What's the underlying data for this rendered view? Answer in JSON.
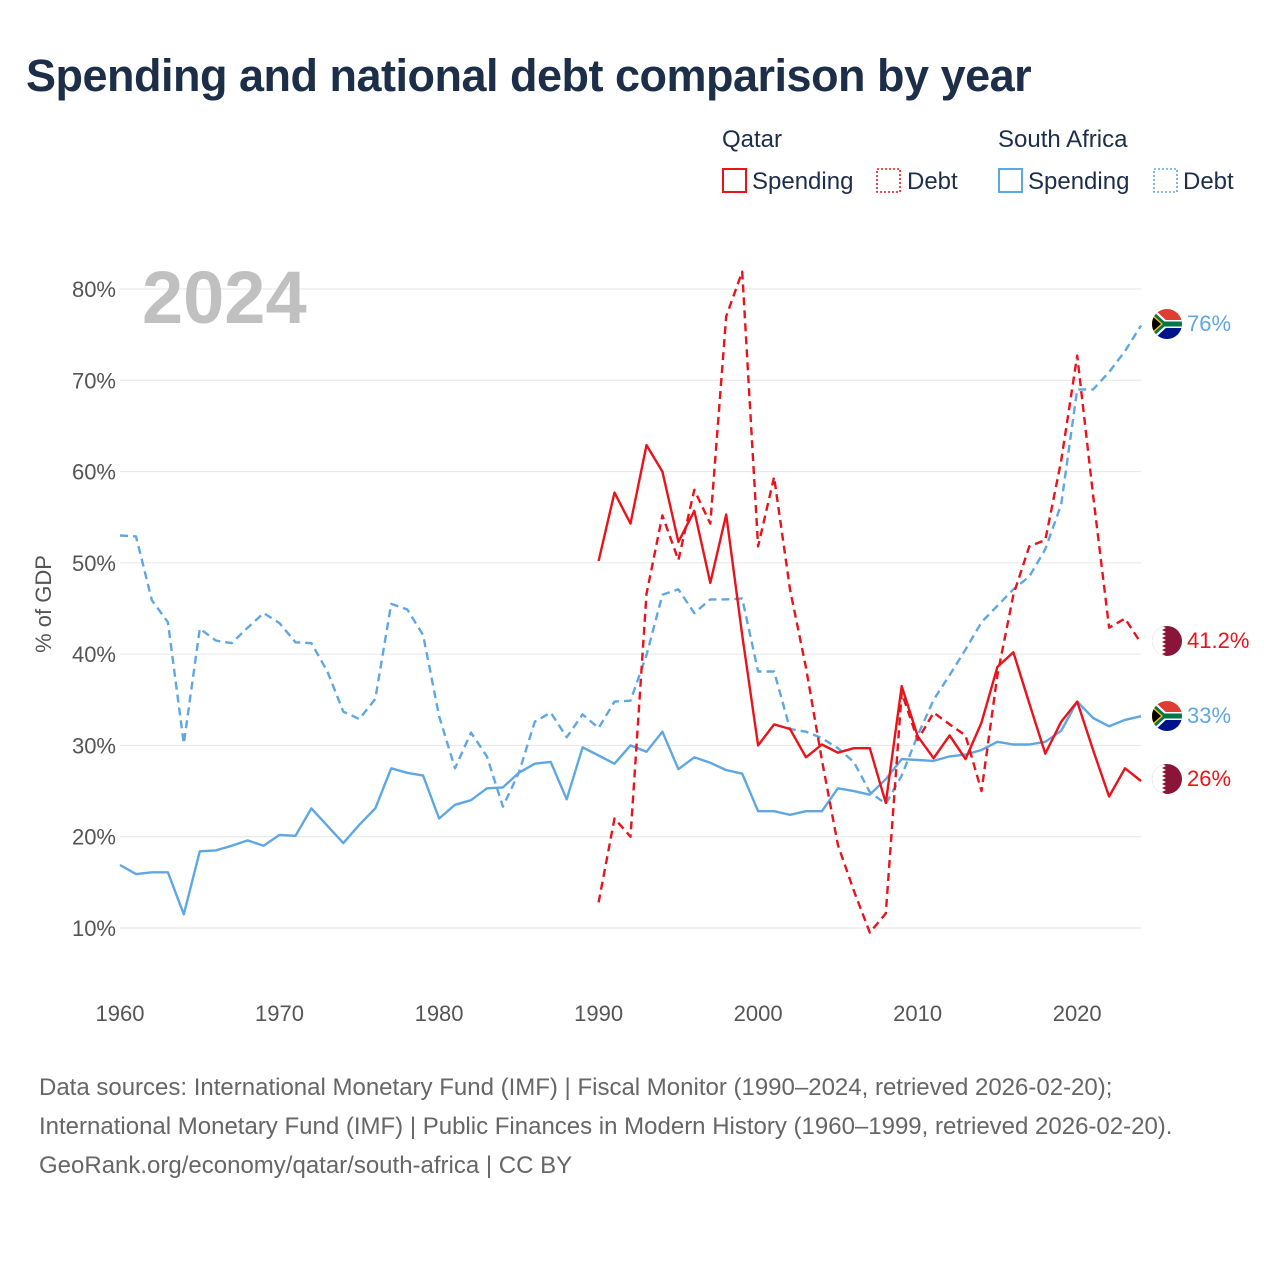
{
  "title": "Spending and national debt comparison by year",
  "year_label": "2024",
  "colors": {
    "qatar": "#e8131b",
    "south_africa": "#5fa7e3",
    "title": "#1c2e48"
  },
  "legend": {
    "groups": [
      {
        "name": "Qatar",
        "items": [
          {
            "label": "Spending",
            "style": "solid"
          },
          {
            "label": "Debt",
            "style": "dotted"
          }
        ]
      },
      {
        "name": "South Africa",
        "items": [
          {
            "label": "Spending",
            "style": "solid"
          },
          {
            "label": "Debt",
            "style": "dotted"
          }
        ]
      }
    ]
  },
  "chart_data": {
    "type": "line",
    "title": "Spending and national debt comparison by year",
    "xlabel": "",
    "ylabel": "% of GDP",
    "xlim": [
      1960,
      2024
    ],
    "ylim": [
      5,
      85
    ],
    "x_ticks": [
      1960,
      1970,
      1980,
      1990,
      2000,
      2010,
      2020
    ],
    "y_ticks": [
      10,
      20,
      30,
      40,
      50,
      60,
      70,
      80
    ],
    "y_tick_labels": [
      "10%",
      "20%",
      "30%",
      "40%",
      "50%",
      "60%",
      "70%",
      "80%"
    ],
    "grid": true,
    "series": [
      {
        "name": "South Africa Debt",
        "country": "South Africa",
        "measure": "Debt",
        "style": "dashed",
        "end_label": "76%",
        "flag": "south-africa-flag",
        "x": [
          1960,
          1961,
          1962,
          1963,
          1964,
          1965,
          1966,
          1967,
          1968,
          1969,
          1970,
          1971,
          1972,
          1973,
          1974,
          1975,
          1976,
          1977,
          1978,
          1979,
          1980,
          1981,
          1982,
          1983,
          1984,
          1985,
          1986,
          1987,
          1988,
          1989,
          1990,
          1991,
          1992,
          1993,
          1994,
          1995,
          1996,
          1997,
          1998,
          1999,
          2000,
          2001,
          2002,
          2003,
          2004,
          2005,
          2006,
          2007,
          2008,
          2009,
          2010,
          2011,
          2012,
          2013,
          2014,
          2015,
          2016,
          2017,
          2018,
          2019,
          2020,
          2021,
          2022,
          2023,
          2024
        ],
        "values": [
          53,
          52.9,
          45.9,
          43.5,
          30.2,
          42.8,
          41.5,
          41.2,
          42.9,
          44.5,
          43.4,
          41.3,
          41.2,
          38.1,
          33.7,
          32.9,
          35.1,
          45.5,
          44.9,
          42.1,
          33.2,
          27.5,
          31.4,
          28.8,
          23.3,
          27,
          32.6,
          33.6,
          30.9,
          33.4,
          31.9,
          34.8,
          34.9,
          39.9,
          46.5,
          47.1,
          44.5,
          46,
          46,
          46.1,
          38.1,
          38.1,
          31.8,
          31.5,
          30.8,
          29.7,
          28.2,
          24.9,
          23.6,
          26.7,
          31.1,
          35,
          37.7,
          40.5,
          43.5,
          45.3,
          47.1,
          48.5,
          51.5,
          56.4,
          69,
          69,
          70.9,
          73.2,
          76
        ]
      },
      {
        "name": "South Africa Spending",
        "country": "South Africa",
        "measure": "Spending",
        "style": "solid",
        "end_label": "33%",
        "flag": "south-africa-flag",
        "x": [
          1960,
          1961,
          1962,
          1963,
          1964,
          1965,
          1966,
          1967,
          1968,
          1969,
          1970,
          1971,
          1972,
          1973,
          1974,
          1975,
          1976,
          1977,
          1978,
          1979,
          1980,
          1981,
          1982,
          1983,
          1984,
          1985,
          1986,
          1987,
          1988,
          1989,
          1990,
          1991,
          1992,
          1993,
          1994,
          1995,
          1996,
          1997,
          1998,
          1999,
          2000,
          2001,
          2002,
          2003,
          2004,
          2005,
          2006,
          2007,
          2008,
          2009,
          2010,
          2011,
          2012,
          2013,
          2014,
          2015,
          2016,
          2017,
          2018,
          2019,
          2020,
          2021,
          2022,
          2023,
          2024
        ],
        "values": [
          16.9,
          15.9,
          16.1,
          16.1,
          11.5,
          18.4,
          18.5,
          19,
          19.6,
          19,
          20.2,
          20.1,
          23.1,
          21.2,
          19.3,
          21.3,
          23.1,
          27.5,
          27,
          26.7,
          22,
          23.5,
          24,
          25.3,
          25.4,
          27,
          28,
          28.2,
          24.1,
          29.8,
          28.9,
          28,
          30,
          29.3,
          31.5,
          27.4,
          28.7,
          28.1,
          27.3,
          26.9,
          22.8,
          22.8,
          22.4,
          22.8,
          22.8,
          25.3,
          25,
          24.6,
          26.3,
          28.5,
          28.4,
          28.3,
          28.8,
          29,
          29.5,
          30.4,
          30.1,
          30.1,
          30.4,
          31.6,
          34.8,
          33,
          32.1,
          32.8,
          33.2
        ]
      },
      {
        "name": "Qatar Debt",
        "country": "Qatar",
        "measure": "Debt",
        "style": "dashed",
        "end_label": "41.2%",
        "flag": "qatar-flag",
        "x": [
          1990,
          1991,
          1992,
          1993,
          1994,
          1995,
          1996,
          1997,
          1998,
          1999,
          2000,
          2001,
          2002,
          2003,
          2004,
          2005,
          2006,
          2007,
          2008,
          2009,
          2010,
          2011,
          2012,
          2013,
          2014,
          2015,
          2016,
          2017,
          2018,
          2019,
          2020,
          2021,
          2022,
          2023,
          2024
        ],
        "values": [
          12.8,
          22,
          20,
          46.6,
          55.2,
          50.3,
          58,
          54.3,
          77,
          81.9,
          51.8,
          59.4,
          47.1,
          38.5,
          28.4,
          19.1,
          14.1,
          9.5,
          11.6,
          35.8,
          30.6,
          33.6,
          32.3,
          31.1,
          25,
          37.7,
          46.5,
          51.8,
          52.5,
          61.2,
          72.7,
          57.4,
          42.9,
          43.9,
          41.2
        ]
      },
      {
        "name": "Qatar Spending",
        "country": "Qatar",
        "measure": "Spending",
        "style": "solid",
        "end_label": "26%",
        "flag": "qatar-flag",
        "x": [
          1990,
          1991,
          1992,
          1993,
          1994,
          1995,
          1996,
          1997,
          1998,
          1999,
          2000,
          2001,
          2002,
          2003,
          2004,
          2005,
          2006,
          2007,
          2008,
          2009,
          2010,
          2011,
          2012,
          2013,
          2014,
          2015,
          2016,
          2017,
          2018,
          2019,
          2020,
          2021,
          2022,
          2023,
          2024
        ],
        "values": [
          50.2,
          57.7,
          54.3,
          62.9,
          60,
          52.3,
          55.7,
          47.8,
          55.3,
          42.1,
          30,
          32.3,
          31.8,
          28.7,
          30.1,
          29.2,
          29.7,
          29.7,
          23.7,
          36.5,
          31,
          28.6,
          31.1,
          28.5,
          32.5,
          38.6,
          40.2,
          34.6,
          29.1,
          32.6,
          34.8,
          29.5,
          24.4,
          27.5,
          26.1
        ]
      }
    ]
  },
  "footer": {
    "sources": "Data sources: International Monetary Fund (IMF) | Fiscal Monitor (1990–2024, retrieved 2026-02-20); International Monetary Fund (IMF) | Public Finances in Modern History (1960–1999, retrieved 2026-02-20).",
    "credit": "GeoRank.org/economy/qatar/south-africa | CC BY"
  }
}
